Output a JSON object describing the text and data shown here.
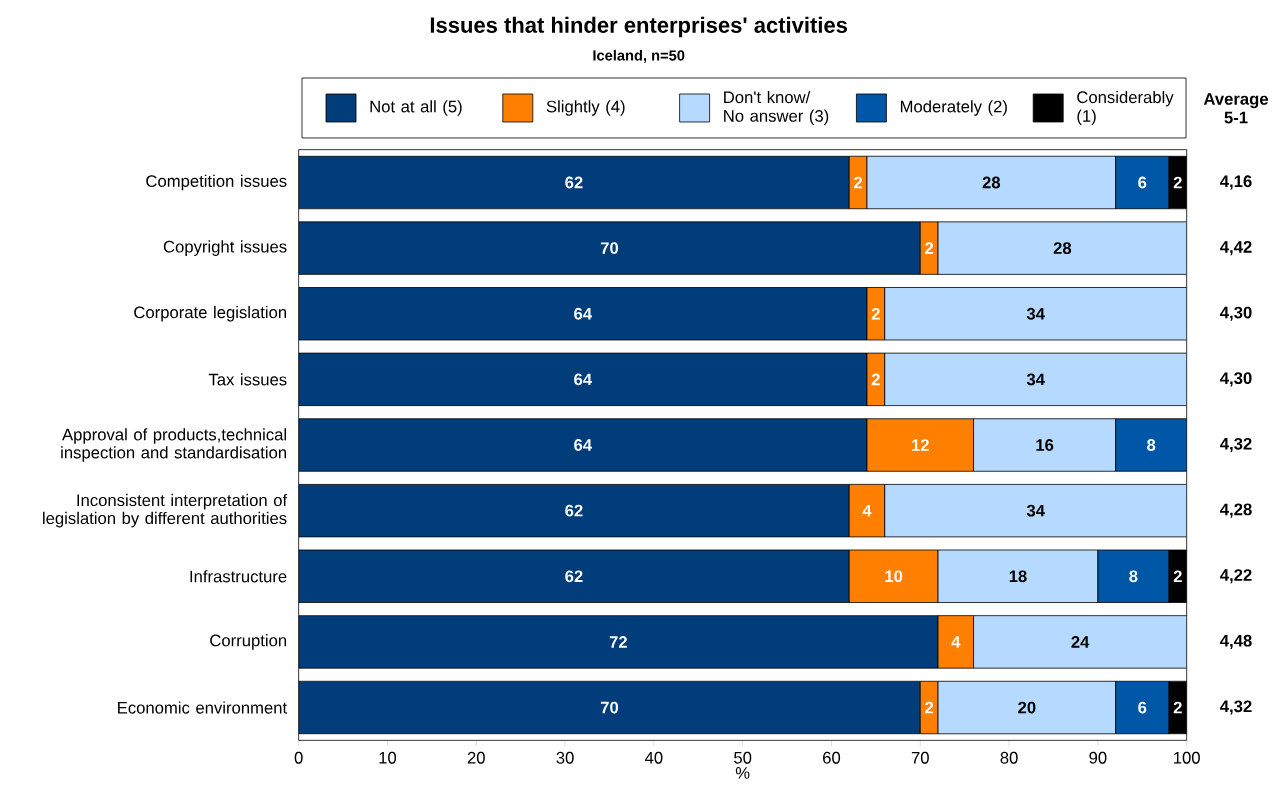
{
  "chart_data": {
    "type": "bar",
    "orientation": "horizontal",
    "stacked": true,
    "title": "Issues that hinder enterprises' activities",
    "subtitle": "Iceland, n=50",
    "xlabel": "%",
    "categories": [
      "Competition issues",
      "Copyright issues",
      "Corporate legislation",
      "Tax issues",
      "Approval of products,technical inspection and standardisation",
      "Inconsistent interpretation of legislation by different authorities",
      "Infrastructure",
      "Corruption",
      "Economic environment"
    ],
    "series": [
      {
        "name": "Not at all (5)",
        "color": "#003d7a",
        "values": [
          62,
          70,
          64,
          64,
          64,
          62,
          62,
          72,
          70
        ]
      },
      {
        "name": "Slightly (4)",
        "color": "#ff8000",
        "values": [
          2,
          2,
          2,
          2,
          12,
          4,
          10,
          4,
          2
        ]
      },
      {
        "name": "Don't know/ No answer (3)",
        "color": "#b5d9ff",
        "values": [
          28,
          28,
          34,
          34,
          16,
          34,
          18,
          24,
          20
        ]
      },
      {
        "name": "Moderately (2)",
        "color": "#0057a8",
        "values": [
          6,
          null,
          null,
          null,
          8,
          null,
          8,
          null,
          6
        ]
      },
      {
        "name": "Considerably (1)",
        "color": "#000000",
        "values": [
          2,
          null,
          null,
          null,
          null,
          null,
          2,
          null,
          2
        ]
      }
    ],
    "xlim": [
      0,
      100
    ],
    "xticks": [
      0,
      10,
      20,
      30,
      40,
      50,
      60,
      70,
      80,
      90,
      100
    ],
    "data_labels": true,
    "legend": "top",
    "grid": false,
    "annotations": [
      "Average 5-1",
      "4,16",
      "4,42",
      "4,30",
      "4,30",
      "4,32",
      "4,28",
      "4,22",
      "4,48",
      "4,32"
    ]
  }
}
